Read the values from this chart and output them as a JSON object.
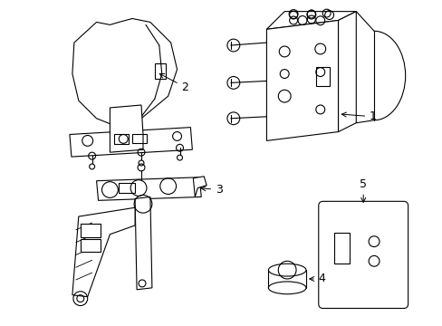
{
  "background_color": "#ffffff",
  "line_color": "#000000",
  "line_width": 0.8,
  "label_fontsize": 9,
  "fig_width": 4.89,
  "fig_height": 3.6
}
